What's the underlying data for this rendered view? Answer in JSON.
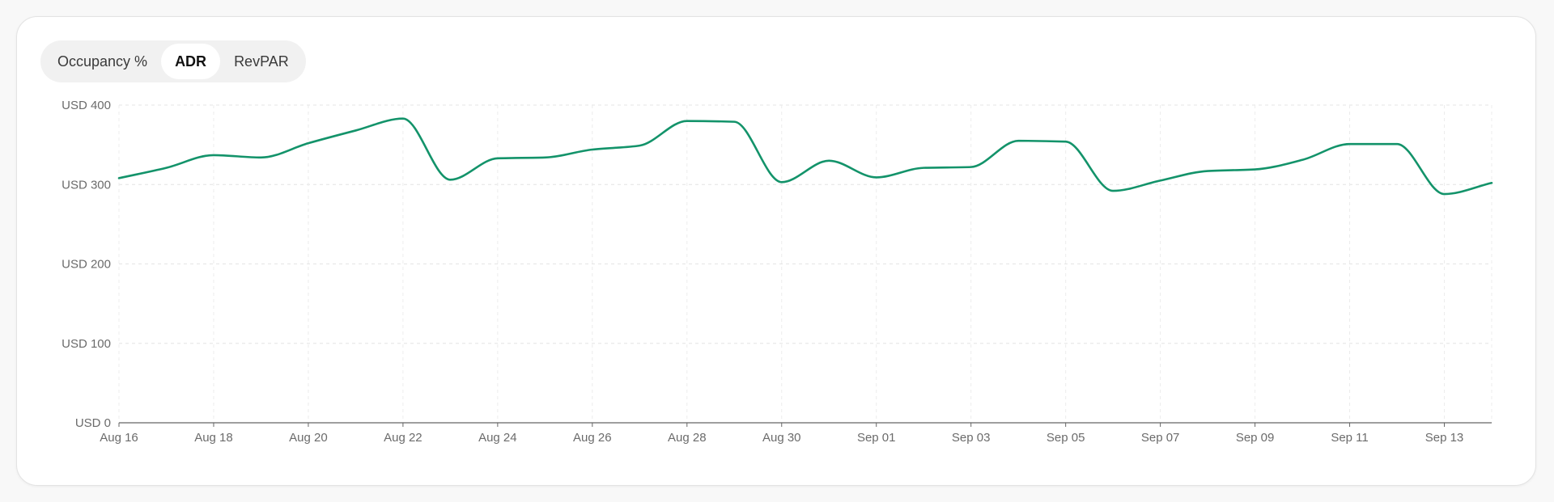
{
  "tabs": {
    "items": [
      {
        "label": "Occupancy %",
        "active": false
      },
      {
        "label": "ADR",
        "active": true
      },
      {
        "label": "RevPAR",
        "active": false
      }
    ]
  },
  "chart_data": {
    "type": "line",
    "title": "",
    "xlabel": "",
    "ylabel": "",
    "ylim": [
      0,
      400
    ],
    "grid": true,
    "line_color": "#13936a",
    "y_ticks": [
      {
        "value": 0,
        "label": "USD 0"
      },
      {
        "value": 100,
        "label": "USD 100"
      },
      {
        "value": 200,
        "label": "USD 200"
      },
      {
        "value": 300,
        "label": "USD 300"
      },
      {
        "value": 400,
        "label": "USD 400"
      }
    ],
    "x_tick_labels": [
      "Aug 16",
      "Aug 18",
      "Aug 20",
      "Aug 22",
      "Aug 24",
      "Aug 26",
      "Aug 28",
      "Aug 30",
      "Sep 01",
      "Sep 03",
      "Sep 05",
      "Sep 07",
      "Sep 09",
      "Sep 11",
      "Sep 13"
    ],
    "series": [
      {
        "x": [
          "Aug 16",
          "Aug 17",
          "Aug 18",
          "Aug 19",
          "Aug 20",
          "Aug 21",
          "Aug 22",
          "Aug 23",
          "Aug 24",
          "Aug 25",
          "Aug 26",
          "Aug 27",
          "Aug 28",
          "Aug 29",
          "Aug 30",
          "Aug 31",
          "Sep 01",
          "Sep 02",
          "Sep 03",
          "Sep 04",
          "Sep 05",
          "Sep 06",
          "Sep 07",
          "Sep 08",
          "Sep 09",
          "Sep 10",
          "Sep 11",
          "Sep 12",
          "Sep 13",
          "Sep 14"
        ],
        "values": [
          308,
          321,
          337,
          334,
          352,
          368,
          383,
          306,
          333,
          334,
          344,
          349,
          380,
          379,
          303,
          330,
          309,
          321,
          322,
          355,
          354,
          292,
          305,
          317,
          319,
          331,
          351,
          351,
          288,
          302
        ]
      }
    ]
  }
}
